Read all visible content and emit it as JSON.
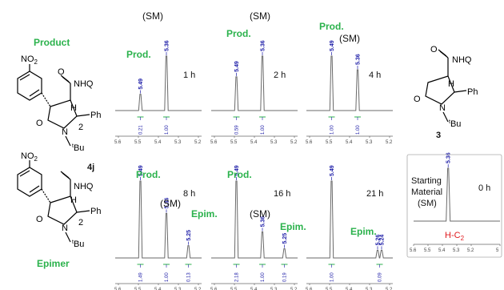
{
  "left": {
    "product_title": "Product",
    "epimer_title": "Epimer",
    "no2": "NO",
    "no2_sub": "2",
    "nhq": "NHQ",
    "h": "H",
    "ph": "Ph",
    "o": "O",
    "n": "N",
    "two": "2",
    "bu_sup": "t",
    "bu": "Bu",
    "compound": "4j"
  },
  "right_structure": {
    "nhq": "NHQ",
    "h": "H",
    "ph": "Ph",
    "o": "O",
    "n": "N",
    "bu_sup": "t",
    "bu": "Bu",
    "compound": "3"
  },
  "tick_labels": [
    "5.6",
    "5.5",
    "5.4",
    "5.3",
    "5.2"
  ],
  "starting_material_ticks": [
    "5.6",
    "5.5",
    "5.4",
    "5.3",
    "5.2",
    "5"
  ],
  "spectra": [
    {
      "time": "1 h",
      "labels": [
        "(SM)",
        "Prod."
      ],
      "peaks": [
        {
          "shift": 5.49,
          "height": 0.3,
          "label": "5.49"
        },
        {
          "shift": 5.36,
          "height": 1.0,
          "label": "5.36"
        }
      ],
      "integrals": [
        {
          "shift": 5.49,
          "label": "0.21"
        },
        {
          "shift": 5.36,
          "label": "1.00"
        }
      ]
    },
    {
      "time": "2 h",
      "labels": [
        "(SM)",
        "Prod."
      ],
      "peaks": [
        {
          "shift": 5.49,
          "height": 0.62,
          "label": "5.49"
        },
        {
          "shift": 5.36,
          "height": 1.0,
          "label": "5.36"
        }
      ],
      "integrals": [
        {
          "shift": 5.49,
          "label": "0.59"
        },
        {
          "shift": 5.36,
          "label": "1.00"
        }
      ]
    },
    {
      "time": "4 h",
      "labels": [
        "Prod.",
        "(SM)"
      ],
      "peaks": [
        {
          "shift": 5.49,
          "height": 1.0,
          "label": "5.49"
        },
        {
          "shift": 5.36,
          "height": 0.75,
          "label": "5.36"
        }
      ],
      "integrals": [
        {
          "shift": 5.49,
          "label": "1.00"
        },
        {
          "shift": 5.36,
          "label": "1.00"
        }
      ]
    },
    {
      "time": "8 h",
      "labels": [
        "Prod.",
        "(SM)",
        "Epim."
      ],
      "peaks": [
        {
          "shift": 5.49,
          "height": 1.0,
          "label": "5.49"
        },
        {
          "shift": 5.36,
          "height": 0.58,
          "label": "5.36"
        },
        {
          "shift": 5.25,
          "height": 0.16,
          "label": "5.25"
        }
      ],
      "integrals": [
        {
          "shift": 5.49,
          "label": "1.49"
        },
        {
          "shift": 5.36,
          "label": "1.00"
        },
        {
          "shift": 5.25,
          "label": "0.13"
        }
      ]
    },
    {
      "time": "16 h",
      "labels": [
        "Prod.",
        "(SM)",
        "Epim."
      ],
      "peaks": [
        {
          "shift": 5.49,
          "height": 1.0,
          "label": "5.49"
        },
        {
          "shift": 5.36,
          "height": 0.34,
          "label": "5.36"
        },
        {
          "shift": 5.25,
          "height": 0.12,
          "label": "5.25"
        }
      ],
      "integrals": [
        {
          "shift": 5.49,
          "label": "2.18"
        },
        {
          "shift": 5.36,
          "label": "1.00"
        },
        {
          "shift": 5.25,
          "label": "0.19"
        }
      ]
    },
    {
      "time": "21 h",
      "labels": [
        "Epim."
      ],
      "peaks": [
        {
          "shift": 5.49,
          "height": 1.0,
          "label": "5.49"
        },
        {
          "shift": 5.26,
          "height": 0.1,
          "label": "5.26"
        },
        {
          "shift": 5.24,
          "height": 0.1,
          "label": "5.24"
        }
      ],
      "integrals": [
        {
          "shift": 5.49,
          "label": "1.00"
        },
        {
          "shift": 5.25,
          "label": "0.09"
        }
      ]
    }
  ],
  "starting_material": {
    "title": "Starting Material (SM)",
    "title_lines": [
      "Starting",
      "Material",
      "(SM)"
    ],
    "time": "0 h",
    "peak": {
      "shift": 5.36,
      "label": "5.36"
    },
    "h": "H",
    "c2": "-C",
    "c2_sub": "2"
  }
}
